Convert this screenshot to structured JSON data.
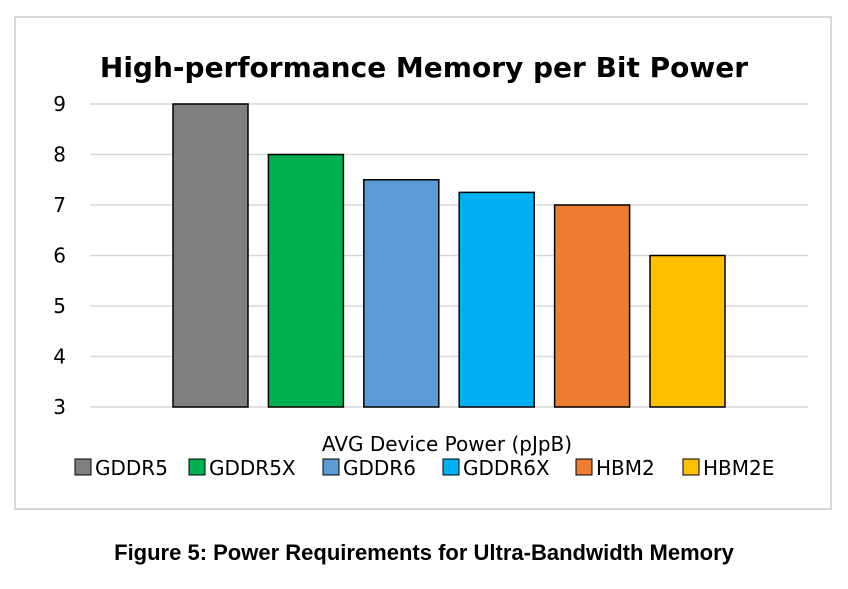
{
  "chart_data": {
    "type": "bar",
    "title": "High-performance Memory per Bit Power",
    "xlabel": "AVG Device Power (pJpB)",
    "ylabel": "",
    "ylim": [
      3,
      9
    ],
    "yticks": [
      3,
      4,
      5,
      6,
      7,
      8,
      9
    ],
    "grid": true,
    "legend_position": "bottom",
    "series": [
      {
        "name": "GDDR5",
        "value": 9,
        "color": "#7f7f7f"
      },
      {
        "name": "GDDR5X",
        "value": 8,
        "color": "#00b050"
      },
      {
        "name": "GDDR6",
        "value": 7.5,
        "color": "#5b9bd5"
      },
      {
        "name": "GDDR6X",
        "value": 7.25,
        "color": "#00b0f0"
      },
      {
        "name": "HBM2",
        "value": 7,
        "color": "#ed7d31"
      },
      {
        "name": "HBM2E",
        "value": 6,
        "color": "#ffc000"
      }
    ]
  },
  "caption": "Figure 5: Power Requirements for Ultra-Bandwidth Memory"
}
